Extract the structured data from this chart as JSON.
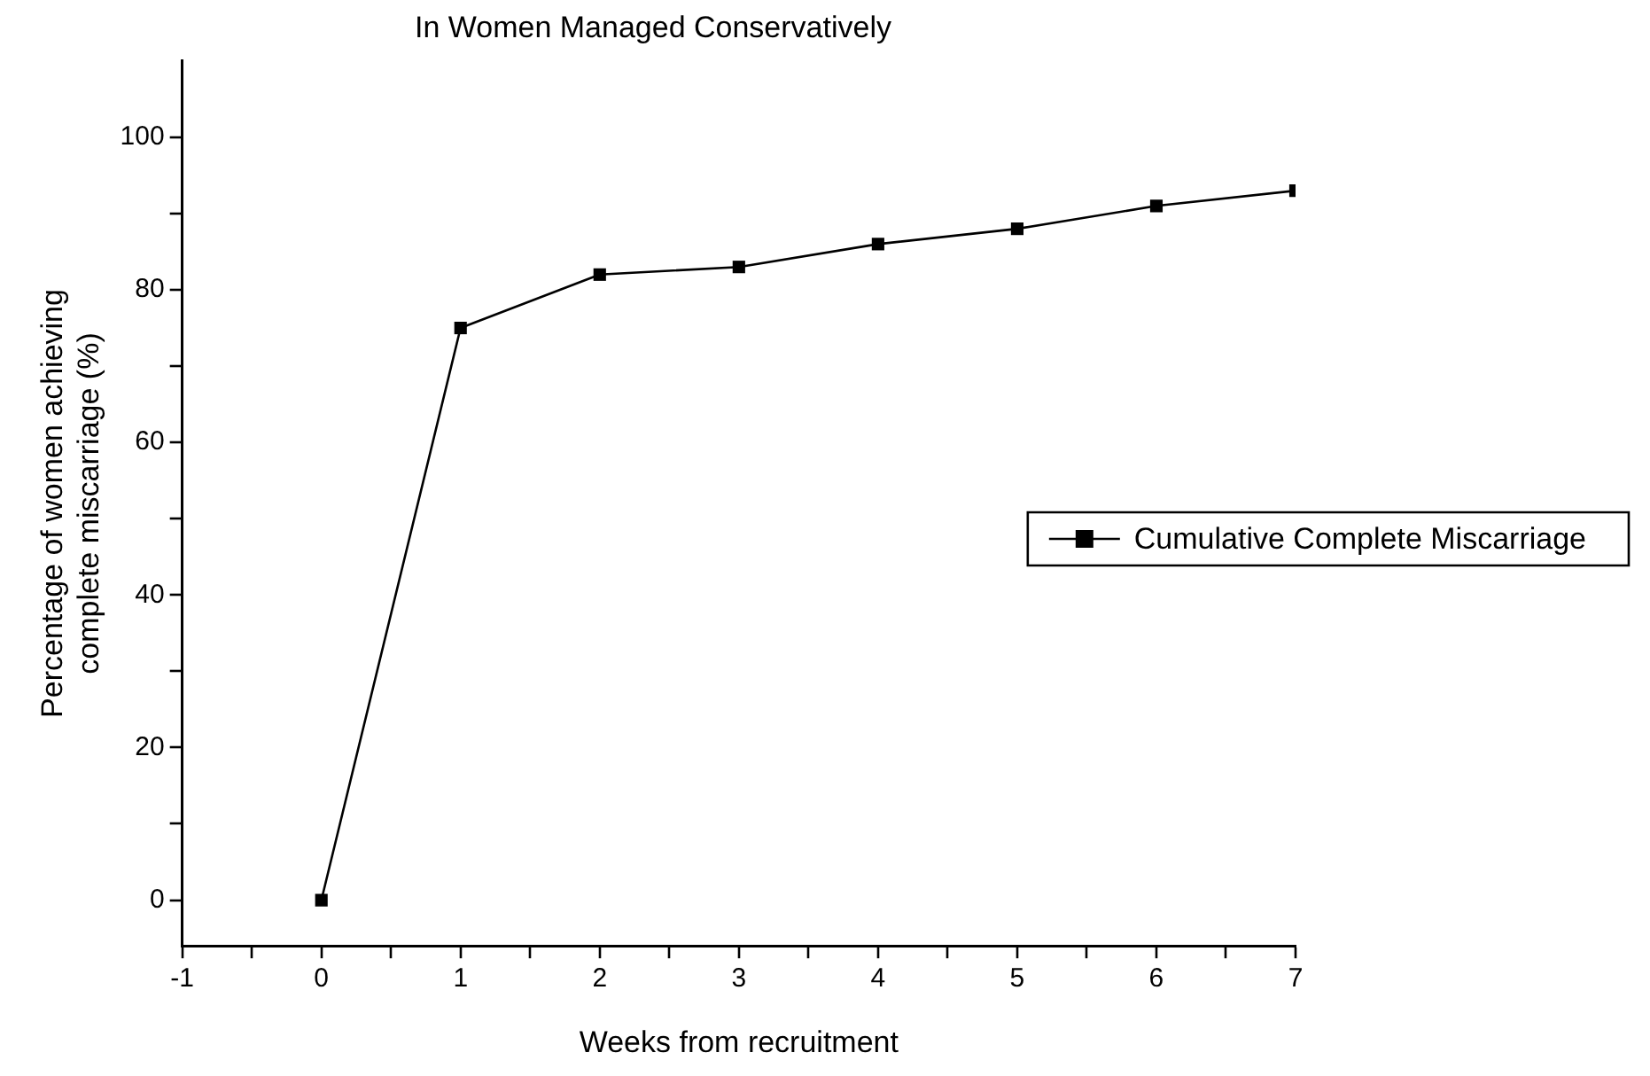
{
  "chart_data": {
    "type": "line",
    "title": "In Women Managed Conservatively",
    "xlabel": "Weeks from recruitment",
    "ylabel": "Percentage of women achieving\ncomplete miscarriage (%)",
    "x": [
      0,
      1,
      2,
      3,
      4,
      5,
      6,
      7
    ],
    "series": [
      {
        "name": "Cumulative Complete Miscarriage",
        "color": "#000000",
        "values": [
          0,
          75,
          82,
          83,
          86,
          88,
          91,
          93
        ]
      }
    ],
    "xlim": [
      -1,
      7
    ],
    "xticks": [
      -1,
      {
        "value": -0.5,
        "label": null
      },
      0,
      {
        "value": 0.5,
        "label": null
      },
      1,
      {
        "value": 1.5,
        "label": null
      },
      2,
      {
        "value": 2.5,
        "label": null
      },
      3,
      {
        "value": 3.5,
        "label": null
      },
      4,
      {
        "value": 4.5,
        "label": null
      },
      5,
      {
        "value": 5.5,
        "label": null
      },
      6,
      {
        "value": 6.5,
        "label": null
      },
      7
    ],
    "ylim": [
      -6,
      110
    ],
    "yticks": [
      0,
      {
        "value": 10,
        "label": null
      },
      20,
      {
        "value": 30,
        "label": null
      },
      40,
      {
        "value": 50,
        "label": null
      },
      60,
      {
        "value": 70,
        "label": null
      },
      80,
      {
        "value": 90,
        "label": null
      },
      100
    ],
    "marker": "square",
    "line_style": "solid",
    "grid": false,
    "legend": "right"
  }
}
